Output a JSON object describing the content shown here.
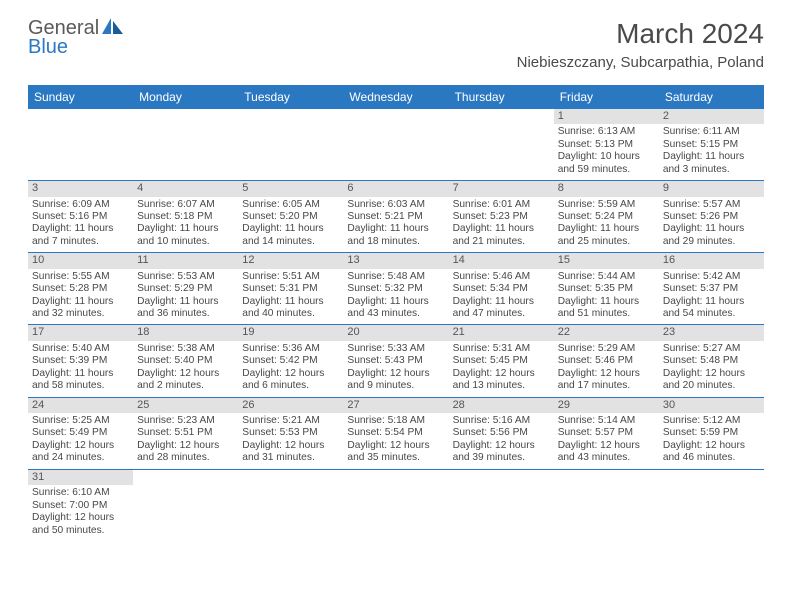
{
  "brand": {
    "name1": "General",
    "name2": "Blue"
  },
  "title": "March 2024",
  "location": "Niebieszczany, Subcarpathia, Poland",
  "colors": {
    "header_bg": "#2b78c2",
    "daynum_bg": "#e2e2e2",
    "text": "#4a4a4a"
  },
  "day_headers": [
    "Sunday",
    "Monday",
    "Tuesday",
    "Wednesday",
    "Thursday",
    "Friday",
    "Saturday"
  ],
  "weeks": [
    [
      null,
      null,
      null,
      null,
      null,
      {
        "n": "1",
        "sr": "Sunrise: 6:13 AM",
        "ss": "Sunset: 5:13 PM",
        "d1": "Daylight: 10 hours",
        "d2": "and 59 minutes."
      },
      {
        "n": "2",
        "sr": "Sunrise: 6:11 AM",
        "ss": "Sunset: 5:15 PM",
        "d1": "Daylight: 11 hours",
        "d2": "and 3 minutes."
      }
    ],
    [
      {
        "n": "3",
        "sr": "Sunrise: 6:09 AM",
        "ss": "Sunset: 5:16 PM",
        "d1": "Daylight: 11 hours",
        "d2": "and 7 minutes."
      },
      {
        "n": "4",
        "sr": "Sunrise: 6:07 AM",
        "ss": "Sunset: 5:18 PM",
        "d1": "Daylight: 11 hours",
        "d2": "and 10 minutes."
      },
      {
        "n": "5",
        "sr": "Sunrise: 6:05 AM",
        "ss": "Sunset: 5:20 PM",
        "d1": "Daylight: 11 hours",
        "d2": "and 14 minutes."
      },
      {
        "n": "6",
        "sr": "Sunrise: 6:03 AM",
        "ss": "Sunset: 5:21 PM",
        "d1": "Daylight: 11 hours",
        "d2": "and 18 minutes."
      },
      {
        "n": "7",
        "sr": "Sunrise: 6:01 AM",
        "ss": "Sunset: 5:23 PM",
        "d1": "Daylight: 11 hours",
        "d2": "and 21 minutes."
      },
      {
        "n": "8",
        "sr": "Sunrise: 5:59 AM",
        "ss": "Sunset: 5:24 PM",
        "d1": "Daylight: 11 hours",
        "d2": "and 25 minutes."
      },
      {
        "n": "9",
        "sr": "Sunrise: 5:57 AM",
        "ss": "Sunset: 5:26 PM",
        "d1": "Daylight: 11 hours",
        "d2": "and 29 minutes."
      }
    ],
    [
      {
        "n": "10",
        "sr": "Sunrise: 5:55 AM",
        "ss": "Sunset: 5:28 PM",
        "d1": "Daylight: 11 hours",
        "d2": "and 32 minutes."
      },
      {
        "n": "11",
        "sr": "Sunrise: 5:53 AM",
        "ss": "Sunset: 5:29 PM",
        "d1": "Daylight: 11 hours",
        "d2": "and 36 minutes."
      },
      {
        "n": "12",
        "sr": "Sunrise: 5:51 AM",
        "ss": "Sunset: 5:31 PM",
        "d1": "Daylight: 11 hours",
        "d2": "and 40 minutes."
      },
      {
        "n": "13",
        "sr": "Sunrise: 5:48 AM",
        "ss": "Sunset: 5:32 PM",
        "d1": "Daylight: 11 hours",
        "d2": "and 43 minutes."
      },
      {
        "n": "14",
        "sr": "Sunrise: 5:46 AM",
        "ss": "Sunset: 5:34 PM",
        "d1": "Daylight: 11 hours",
        "d2": "and 47 minutes."
      },
      {
        "n": "15",
        "sr": "Sunrise: 5:44 AM",
        "ss": "Sunset: 5:35 PM",
        "d1": "Daylight: 11 hours",
        "d2": "and 51 minutes."
      },
      {
        "n": "16",
        "sr": "Sunrise: 5:42 AM",
        "ss": "Sunset: 5:37 PM",
        "d1": "Daylight: 11 hours",
        "d2": "and 54 minutes."
      }
    ],
    [
      {
        "n": "17",
        "sr": "Sunrise: 5:40 AM",
        "ss": "Sunset: 5:39 PM",
        "d1": "Daylight: 11 hours",
        "d2": "and 58 minutes."
      },
      {
        "n": "18",
        "sr": "Sunrise: 5:38 AM",
        "ss": "Sunset: 5:40 PM",
        "d1": "Daylight: 12 hours",
        "d2": "and 2 minutes."
      },
      {
        "n": "19",
        "sr": "Sunrise: 5:36 AM",
        "ss": "Sunset: 5:42 PM",
        "d1": "Daylight: 12 hours",
        "d2": "and 6 minutes."
      },
      {
        "n": "20",
        "sr": "Sunrise: 5:33 AM",
        "ss": "Sunset: 5:43 PM",
        "d1": "Daylight: 12 hours",
        "d2": "and 9 minutes."
      },
      {
        "n": "21",
        "sr": "Sunrise: 5:31 AM",
        "ss": "Sunset: 5:45 PM",
        "d1": "Daylight: 12 hours",
        "d2": "and 13 minutes."
      },
      {
        "n": "22",
        "sr": "Sunrise: 5:29 AM",
        "ss": "Sunset: 5:46 PM",
        "d1": "Daylight: 12 hours",
        "d2": "and 17 minutes."
      },
      {
        "n": "23",
        "sr": "Sunrise: 5:27 AM",
        "ss": "Sunset: 5:48 PM",
        "d1": "Daylight: 12 hours",
        "d2": "and 20 minutes."
      }
    ],
    [
      {
        "n": "24",
        "sr": "Sunrise: 5:25 AM",
        "ss": "Sunset: 5:49 PM",
        "d1": "Daylight: 12 hours",
        "d2": "and 24 minutes."
      },
      {
        "n": "25",
        "sr": "Sunrise: 5:23 AM",
        "ss": "Sunset: 5:51 PM",
        "d1": "Daylight: 12 hours",
        "d2": "and 28 minutes."
      },
      {
        "n": "26",
        "sr": "Sunrise: 5:21 AM",
        "ss": "Sunset: 5:53 PM",
        "d1": "Daylight: 12 hours",
        "d2": "and 31 minutes."
      },
      {
        "n": "27",
        "sr": "Sunrise: 5:18 AM",
        "ss": "Sunset: 5:54 PM",
        "d1": "Daylight: 12 hours",
        "d2": "and 35 minutes."
      },
      {
        "n": "28",
        "sr": "Sunrise: 5:16 AM",
        "ss": "Sunset: 5:56 PM",
        "d1": "Daylight: 12 hours",
        "d2": "and 39 minutes."
      },
      {
        "n": "29",
        "sr": "Sunrise: 5:14 AM",
        "ss": "Sunset: 5:57 PM",
        "d1": "Daylight: 12 hours",
        "d2": "and 43 minutes."
      },
      {
        "n": "30",
        "sr": "Sunrise: 5:12 AM",
        "ss": "Sunset: 5:59 PM",
        "d1": "Daylight: 12 hours",
        "d2": "and 46 minutes."
      }
    ],
    [
      {
        "n": "31",
        "sr": "Sunrise: 6:10 AM",
        "ss": "Sunset: 7:00 PM",
        "d1": "Daylight: 12 hours",
        "d2": "and 50 minutes."
      },
      null,
      null,
      null,
      null,
      null,
      null
    ]
  ]
}
